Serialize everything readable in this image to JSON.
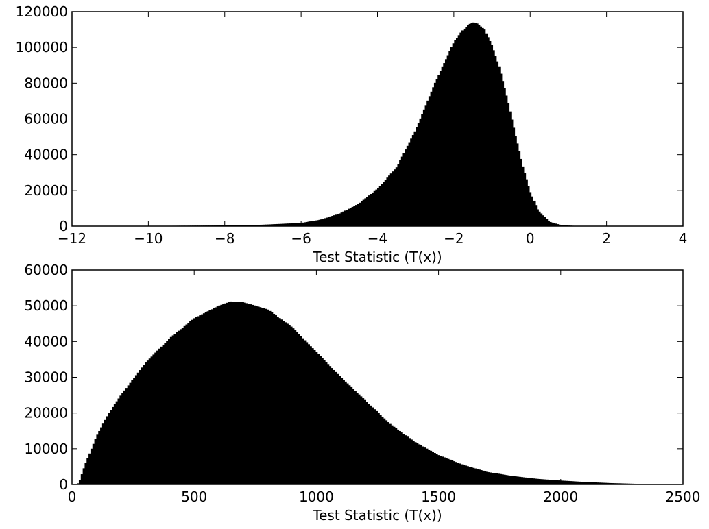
{
  "chart_data": [
    {
      "type": "histogram",
      "title": "",
      "xlabel": "Test Statistic (T(x))",
      "ylabel": "",
      "xlim": [
        -12,
        4
      ],
      "ylim": [
        0,
        120000
      ],
      "xticks": [
        -12,
        -10,
        -8,
        -6,
        -4,
        -2,
        0,
        2,
        4
      ],
      "xtick_labels": [
        "−12",
        "−10",
        "−8",
        "−6",
        "−4",
        "−2",
        "0",
        "2",
        "4"
      ],
      "yticks": [
        0,
        20000,
        40000,
        60000,
        80000,
        100000,
        120000
      ],
      "ytick_labels": [
        "0",
        "20000",
        "40000",
        "60000",
        "80000",
        "100000",
        "120000"
      ],
      "grid": false,
      "fill_color": "#000000",
      "envelope": {
        "x": [
          -11.4,
          -10,
          -8,
          -7,
          -6,
          -5.5,
          -5,
          -4.5,
          -4,
          -3.5,
          -3,
          -2.5,
          -2,
          -1.8,
          -1.6,
          -1.5,
          -1.4,
          -1.2,
          -1,
          -0.8,
          -0.6,
          -0.4,
          -0.2,
          0,
          0.2,
          0.5,
          0.8,
          1.2,
          2,
          3
        ],
        "y": [
          0,
          100,
          400,
          800,
          1800,
          3600,
          7000,
          12500,
          21000,
          33000,
          54000,
          80000,
          103000,
          109000,
          113000,
          114000,
          113500,
          110000,
          101000,
          88000,
          71000,
          52000,
          34000,
          19000,
          9000,
          2500,
          600,
          100,
          20,
          0
        ]
      }
    },
    {
      "type": "histogram",
      "title": "",
      "xlabel": "Test Statistic (T(x))",
      "ylabel": "",
      "xlim": [
        0,
        2500
      ],
      "ylim": [
        0,
        60000
      ],
      "xticks": [
        0,
        500,
        1000,
        1500,
        2000,
        2500
      ],
      "xtick_labels": [
        "0",
        "500",
        "1000",
        "1500",
        "2000",
        "2500"
      ],
      "yticks": [
        0,
        10000,
        20000,
        30000,
        40000,
        50000,
        60000
      ],
      "ytick_labels": [
        "0",
        "10000",
        "20000",
        "30000",
        "40000",
        "50000",
        "60000"
      ],
      "grid": false,
      "fill_color": "#000000",
      "envelope": {
        "x": [
          20,
          30,
          50,
          100,
          150,
          200,
          300,
          400,
          500,
          600,
          650,
          700,
          750,
          800,
          900,
          1000,
          1100,
          1200,
          1300,
          1400,
          1500,
          1600,
          1700,
          1800,
          1900,
          2000,
          2100,
          2200,
          2300,
          2400
        ],
        "y": [
          0,
          800,
          5000,
          13500,
          20000,
          25000,
          34000,
          41000,
          46500,
          50000,
          51200,
          51000,
          50000,
          49000,
          44000,
          37000,
          30000,
          23500,
          17000,
          12000,
          8200,
          5500,
          3500,
          2400,
          1600,
          1100,
          700,
          400,
          200,
          0
        ]
      }
    }
  ]
}
